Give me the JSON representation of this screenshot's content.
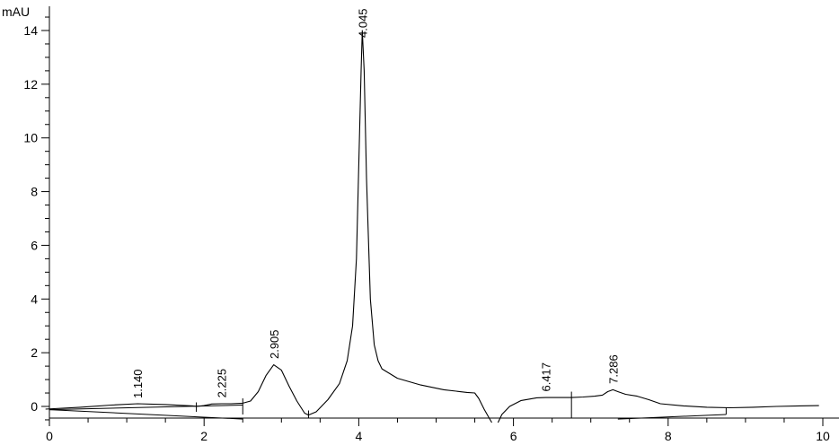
{
  "chart_data": {
    "type": "line",
    "title": "",
    "xlabel": "",
    "ylabel": "mAU",
    "xlim": [
      0,
      10
    ],
    "ylim": [
      -0.5,
      14.9
    ],
    "grid": false,
    "x_ticks": [
      0,
      2,
      4,
      6,
      8,
      10
    ],
    "x_tick_labels": [
      "0",
      "2",
      "4",
      "6",
      "8",
      "10"
    ],
    "y_ticks": [
      0,
      2,
      4,
      6,
      8,
      10,
      12,
      14
    ],
    "y_tick_labels": [
      "0",
      "2",
      "4",
      "6",
      "8",
      "10",
      "12",
      "14"
    ],
    "series": [
      {
        "x": [
          -0.05,
          0.4,
          0.8,
          1.14,
          1.5,
          1.85,
          1.9,
          2.0,
          2.1,
          2.225,
          2.35,
          2.5,
          2.6,
          2.7,
          2.8,
          2.9,
          3.0,
          3.1,
          3.2,
          3.3,
          3.35,
          3.45,
          3.6,
          3.75,
          3.85,
          3.92,
          3.97,
          4.0,
          4.03,
          4.045,
          4.07,
          4.1,
          4.15,
          4.2,
          4.25,
          4.3,
          4.5,
          4.8,
          5.1,
          5.4,
          5.5,
          5.55,
          5.62,
          5.68,
          5.72
        ],
        "y": [
          -0.1,
          -0.03,
          0.05,
          0.1,
          0.07,
          0.02,
          0.0,
          0.03,
          0.09,
          0.1,
          0.1,
          0.12,
          0.2,
          0.55,
          1.15,
          1.55,
          1.35,
          0.75,
          0.2,
          -0.25,
          -0.32,
          -0.2,
          0.25,
          0.85,
          1.7,
          3.0,
          5.5,
          9.0,
          12.5,
          14.0,
          12.5,
          8.5,
          4.0,
          2.3,
          1.7,
          1.4,
          1.05,
          0.8,
          0.62,
          0.52,
          0.5,
          0.3,
          -0.1,
          -0.4,
          -0.6
        ]
      },
      {
        "x": [
          5.8,
          5.85,
          5.95,
          6.1,
          6.3,
          6.417,
          6.6,
          6.75,
          6.9,
          7.05,
          7.15,
          7.22,
          7.286,
          7.35,
          7.45,
          7.6,
          7.75,
          7.9,
          8.2,
          8.5,
          8.8,
          9.1,
          9.4,
          9.7,
          9.95
        ],
        "y": [
          -0.6,
          -0.3,
          0.0,
          0.22,
          0.32,
          0.33,
          0.33,
          0.33,
          0.35,
          0.38,
          0.42,
          0.55,
          0.62,
          0.55,
          0.45,
          0.38,
          0.25,
          0.1,
          0.02,
          -0.03,
          -0.05,
          -0.03,
          0.0,
          0.02,
          0.03
        ]
      }
    ],
    "baselines": [
      {
        "x": [
          0.0,
          2.5
        ],
        "y": [
          -0.12,
          0.05
        ]
      },
      {
        "x": [
          0.0,
          2.5
        ],
        "y": [
          -0.12,
          -0.47
        ]
      },
      {
        "x": [
          7.35,
          8.75
        ],
        "y": [
          -0.47,
          -0.3
        ]
      }
    ],
    "peak_markers": [
      {
        "x": 1.9,
        "y0": -0.2,
        "y1": 0.15
      },
      {
        "x": 2.5,
        "y0": -0.3,
        "y1": 0.3
      },
      {
        "x": 3.35,
        "y0": -0.45,
        "y1": -0.15
      },
      {
        "x": 6.75,
        "y0": -0.45,
        "y1": 0.55
      },
      {
        "x": 8.75,
        "y0": -0.3,
        "y1": -0.05
      }
    ],
    "annotations": [
      {
        "text": "1.140",
        "x": 1.14,
        "y": 0.1
      },
      {
        "text": "2.225",
        "x": 2.225,
        "y": 0.12
      },
      {
        "text": "2.905",
        "x": 2.905,
        "y": 1.57
      },
      {
        "text": "4.045",
        "x": 4.045,
        "y": 14.0
      },
      {
        "text": "6.417",
        "x": 6.417,
        "y": 0.35
      },
      {
        "text": "7.286",
        "x": 7.286,
        "y": 0.64
      }
    ]
  }
}
